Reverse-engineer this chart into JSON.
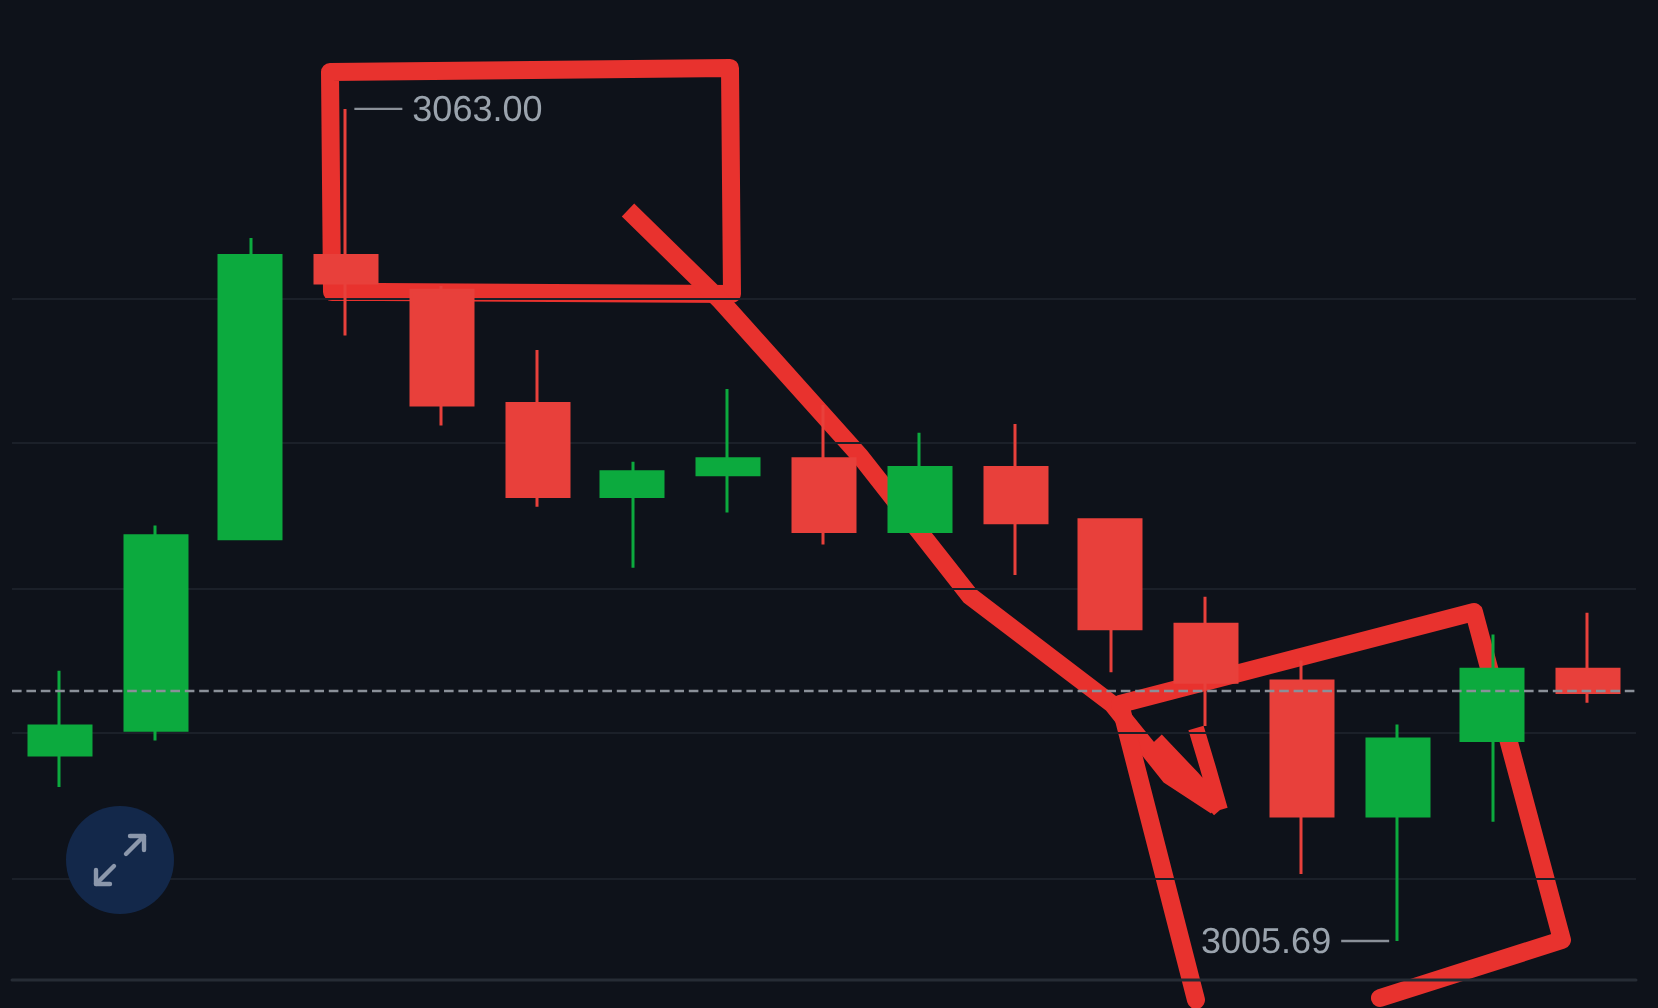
{
  "chart_data": {
    "type": "candlestick",
    "categories": [
      null,
      null,
      null,
      null,
      null,
      null,
      null,
      null,
      null,
      null,
      null,
      null,
      null,
      null,
      null,
      null,
      null
    ],
    "ohlc": [
      [
        3018.5,
        3024.3,
        3016.3,
        3020.5
      ],
      [
        3020.2,
        3034.3,
        3019.5,
        3033.6
      ],
      [
        3033.4,
        3054.1,
        3033.4,
        3052.9
      ],
      [
        3052.9,
        3063,
        3047.4,
        3051.0
      ],
      [
        3050.5,
        3050.8,
        3041.2,
        3042.6
      ],
      [
        3042.7,
        3046.4,
        3035.6,
        3036.3
      ],
      [
        3036.3,
        3038.7,
        3031.4,
        3038.0
      ],
      [
        3037.8,
        3043.7,
        3035.2,
        3038.9
      ],
      [
        3038.9,
        3042.6,
        3033.0,
        3033.9
      ],
      [
        3033.9,
        3040.7,
        3033.9,
        3038.3
      ],
      [
        3038.3,
        3041.3,
        3030.9,
        3034.5
      ],
      [
        3034.7,
        3034.7,
        3024.2,
        3027.2
      ],
      [
        3027.5,
        3029.4,
        3020.5,
        3023.5
      ],
      [
        3023.6,
        3025.0,
        3010.3,
        3014.3
      ],
      [
        3014.3,
        3020.6,
        3005.69,
        3019.6
      ],
      [
        3019.5,
        3026.8,
        3013.9,
        3024.4
      ],
      [
        3024.4,
        3028.3,
        3022.1,
        3022.8
      ]
    ],
    "colors": [
      "#0caa3e",
      "#0caa3e",
      "#0caa3e",
      "#e8403b",
      "#e8403b",
      "#e8403b",
      "#0caa3e",
      "#0caa3e",
      "#e8403b",
      "#0caa3e",
      "#e8403b",
      "#e8403b",
      "#e8403b",
      "#e8403b",
      "#0caa3e",
      "#0caa3e",
      "#e8403b"
    ],
    "ylim": [
      3003,
      3070.5
    ],
    "yticks": [
      {
        "value": 3010,
        "label": null
      },
      {
        "value": 3020,
        "label": null
      },
      {
        "value": 3030,
        "label": null
      },
      {
        "value": 3040,
        "label": null
      },
      {
        "value": 3050,
        "label": null
      }
    ],
    "grid": "y",
    "ref_lines": [
      {
        "axis": "y",
        "value": 3023,
        "color": "#8a9099",
        "line_style": "dashed"
      }
    ],
    "annotations": [
      "3063.00",
      "3005.69"
    ]
  }
}
